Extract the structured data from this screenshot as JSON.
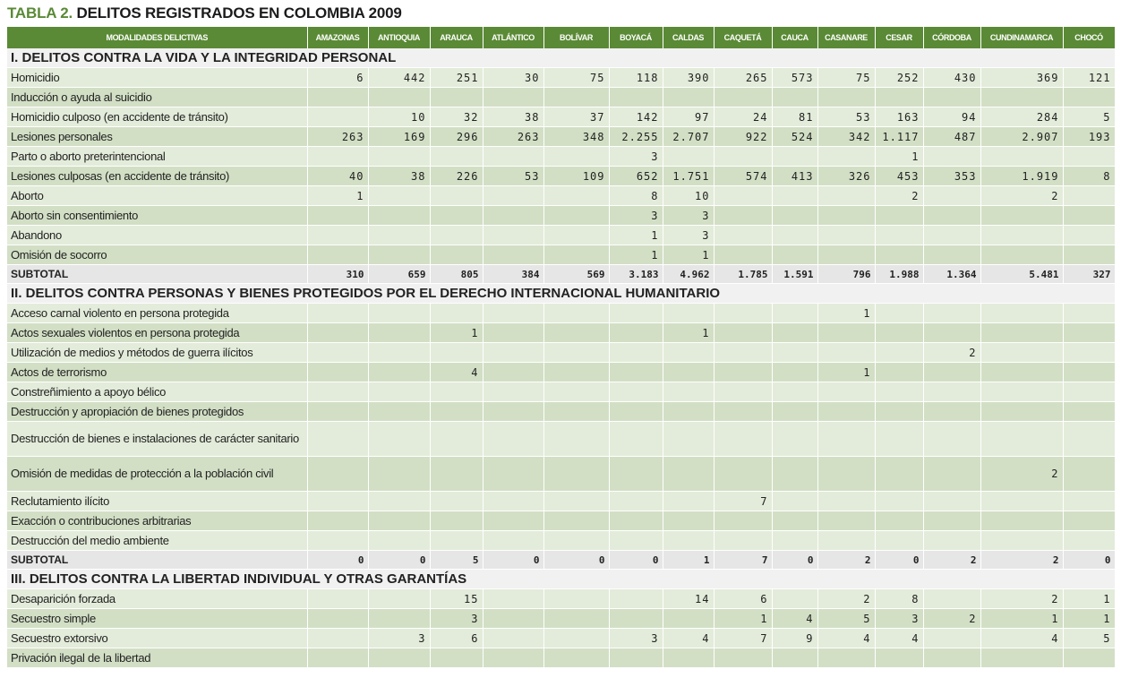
{
  "title": {
    "tag": "TABLA 2.",
    "text": "DELITOS REGISTRADOS EN COLOMBIA 2009"
  },
  "columns": [
    "MODALIDADES DELICTIVAS",
    "AMAZONAS",
    "ANTIOQUIA",
    "ARAUCA",
    "ATLÁNTICO",
    "BOLÍVAR",
    "BOYACÁ",
    "CALDAS",
    "CAQUETÁ",
    "CAUCA",
    "CASANARE",
    "CESAR",
    "CÓRDOBA",
    "CUNDINAMARCA",
    "CHOCÓ"
  ],
  "colors": {
    "header": "#5a8a35",
    "row_light": "#e3ecda",
    "row_dark": "#d2dfc5"
  },
  "sections": [
    {
      "title": "I. DELITOS CONTRA LA VIDA Y LA INTEGRIDAD PERSONAL",
      "rows": [
        {
          "label": "Homicidio",
          "values": [
            "6",
            "442",
            "251",
            "30",
            "75",
            "118",
            "390",
            "265",
            "573",
            "75",
            "252",
            "430",
            "369",
            "121"
          ]
        },
        {
          "label": "Inducción o ayuda al suicidio",
          "values": [
            "",
            "",
            "",
            "",
            "",
            "",
            "",
            "",
            "",
            "",
            "",
            "",
            "",
            ""
          ]
        },
        {
          "label": "Homicidio culposo (en accidente de tránsito)",
          "values": [
            "",
            "10",
            "32",
            "38",
            "37",
            "142",
            "97",
            "24",
            "81",
            "53",
            "163",
            "94",
            "284",
            "5"
          ]
        },
        {
          "label": "Lesiones personales",
          "values": [
            "263",
            "169",
            "296",
            "263",
            "348",
            "2.255",
            "2.707",
            "922",
            "524",
            "342",
            "1.117",
            "487",
            "2.907",
            "193"
          ]
        },
        {
          "label": "Parto o aborto preterintencional",
          "values": [
            "",
            "",
            "",
            "",
            "",
            "3",
            "",
            "",
            "",
            "",
            "1",
            "",
            "",
            ""
          ]
        },
        {
          "label": "Lesiones culposas (en accidente de tránsito)",
          "values": [
            "40",
            "38",
            "226",
            "53",
            "109",
            "652",
            "1.751",
            "574",
            "413",
            "326",
            "453",
            "353",
            "1.919",
            "8"
          ]
        },
        {
          "label": "Aborto",
          "values": [
            "1",
            "",
            "",
            "",
            "",
            "8",
            "10",
            "",
            "",
            "",
            "2",
            "",
            "2",
            ""
          ]
        },
        {
          "label": "Aborto sin consentimiento",
          "values": [
            "",
            "",
            "",
            "",
            "",
            "3",
            "3",
            "",
            "",
            "",
            "",
            "",
            "",
            ""
          ]
        },
        {
          "label": "Abandono",
          "values": [
            "",
            "",
            "",
            "",
            "",
            "1",
            "3",
            "",
            "",
            "",
            "",
            "",
            "",
            ""
          ]
        },
        {
          "label": "Omisión de socorro",
          "values": [
            "",
            "",
            "",
            "",
            "",
            "1",
            "1",
            "",
            "",
            "",
            "",
            "",
            "",
            ""
          ]
        }
      ],
      "subtotal": {
        "label": "SUBTOTAL",
        "values": [
          "310",
          "659",
          "805",
          "384",
          "569",
          "3.183",
          "4.962",
          "1.785",
          "1.591",
          "796",
          "1.988",
          "1.364",
          "5.481",
          "327"
        ]
      }
    },
    {
      "title": "II. DELITOS CONTRA PERSONAS Y BIENES PROTEGIDOS POR EL DERECHO INTERNACIONAL HUMANITARIO",
      "rows": [
        {
          "label": "Acceso carnal violento en persona protegida",
          "values": [
            "",
            "",
            "",
            "",
            "",
            "",
            "",
            "",
            "",
            "1",
            "",
            "",
            "",
            ""
          ]
        },
        {
          "label": "Actos sexuales violentos en persona protegida",
          "values": [
            "",
            "",
            "1",
            "",
            "",
            "",
            "1",
            "",
            "",
            "",
            "",
            "",
            "",
            ""
          ]
        },
        {
          "label": "Utilización de medios y métodos de guerra ilícitos",
          "values": [
            "",
            "",
            "",
            "",
            "",
            "",
            "",
            "",
            "",
            "",
            "",
            "2",
            "",
            ""
          ]
        },
        {
          "label": "Actos de terrorismo",
          "values": [
            "",
            "",
            "4",
            "",
            "",
            "",
            "",
            "",
            "",
            "1",
            "",
            "",
            "",
            ""
          ]
        },
        {
          "label": "Constreñimiento a apoyo bélico",
          "values": [
            "",
            "",
            "",
            "",
            "",
            "",
            "",
            "",
            "",
            "",
            "",
            "",
            "",
            ""
          ]
        },
        {
          "label": "Destrucción y apropiación de bienes protegidos",
          "values": [
            "",
            "",
            "",
            "",
            "",
            "",
            "",
            "",
            "",
            "",
            "",
            "",
            "",
            ""
          ]
        },
        {
          "label": "Destrucción de bienes e instalaciones de carácter sanitario",
          "values": [
            "",
            "",
            "",
            "",
            "",
            "",
            "",
            "",
            "",
            "",
            "",
            "",
            "",
            ""
          ],
          "wrap": true
        },
        {
          "label": "Omisión de medidas de protección a la población civil",
          "values": [
            "",
            "",
            "",
            "",
            "",
            "",
            "",
            "",
            "",
            "",
            "",
            "",
            "2",
            ""
          ],
          "wrap": true
        },
        {
          "label": "Reclutamiento ilícito",
          "values": [
            "",
            "",
            "",
            "",
            "",
            "",
            "",
            "7",
            "",
            "",
            "",
            "",
            "",
            ""
          ]
        },
        {
          "label": "Exacción o contribuciones arbitrarias",
          "values": [
            "",
            "",
            "",
            "",
            "",
            "",
            "",
            "",
            "",
            "",
            "",
            "",
            "",
            ""
          ]
        },
        {
          "label": "Destrucción del medio ambiente",
          "values": [
            "",
            "",
            "",
            "",
            "",
            "",
            "",
            "",
            "",
            "",
            "",
            "",
            "",
            ""
          ]
        }
      ],
      "subtotal": {
        "label": "SUBTOTAL",
        "values": [
          "0",
          "0",
          "5",
          "0",
          "0",
          "0",
          "1",
          "7",
          "0",
          "2",
          "0",
          "2",
          "2",
          "0"
        ]
      }
    },
    {
      "title": "III. DELITOS CONTRA LA LIBERTAD INDIVIDUAL Y OTRAS GARANTÍAS",
      "rows": [
        {
          "label": "Desaparición forzada",
          "values": [
            "",
            "",
            "15",
            "",
            "",
            "",
            "14",
            "6",
            "",
            "2",
            "8",
            "",
            "2",
            "1"
          ]
        },
        {
          "label": "Secuestro simple",
          "values": [
            "",
            "",
            "3",
            "",
            "",
            "",
            "",
            "1",
            "4",
            "5",
            "3",
            "2",
            "1",
            "1"
          ]
        },
        {
          "label": "Secuestro extorsivo",
          "values": [
            "",
            "3",
            "6",
            "",
            "",
            "3",
            "4",
            "7",
            "9",
            "4",
            "4",
            "",
            "4",
            "5"
          ]
        },
        {
          "label": "Privación ilegal de la libertad",
          "values": [
            "",
            "",
            "",
            "",
            "",
            "",
            "",
            "",
            "",
            "",
            "",
            "",
            "",
            ""
          ]
        }
      ]
    }
  ]
}
